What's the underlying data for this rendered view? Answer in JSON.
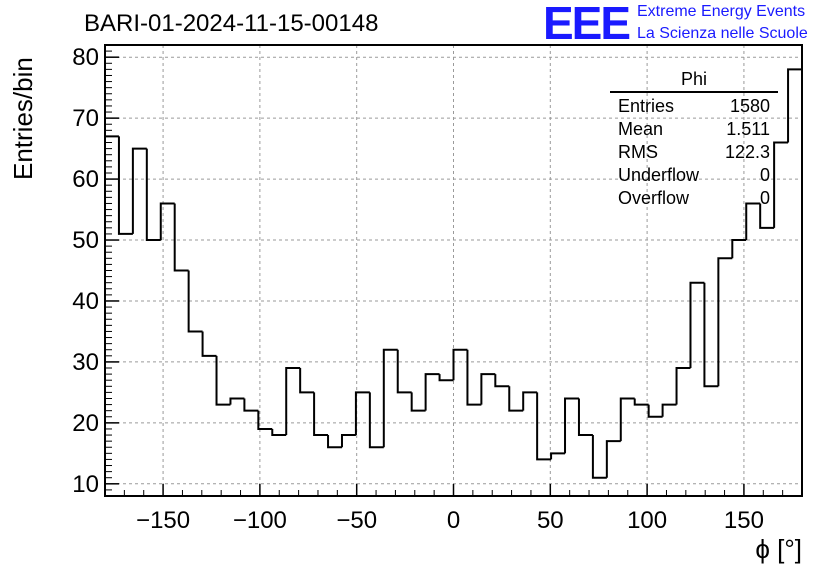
{
  "title": "BARI-01-2024-11-15-00148",
  "logo": {
    "mark": "EEE",
    "line1": "Extreme Energy Events",
    "line2": "La Scienza nelle Scuole",
    "color": "#1a1aff"
  },
  "stats": {
    "name": "Phi",
    "rows": [
      {
        "label": "Entries",
        "value": "1580"
      },
      {
        "label": "Mean",
        "value": "1.511"
      },
      {
        "label": "RMS",
        "value": "122.3"
      },
      {
        "label": "Underflow",
        "value": "0"
      },
      {
        "label": "Overflow",
        "value": "0"
      }
    ]
  },
  "chart_data": {
    "type": "bar",
    "style": "step-histogram",
    "title": "BARI-01-2024-11-15-00148",
    "xlabel": "ϕ [°]",
    "ylabel": "Entries/bin",
    "xlim": [
      -180,
      180
    ],
    "ylim": [
      8,
      82
    ],
    "bin_width": 7.2,
    "bin_edges_start": -180,
    "x_ticks": [
      -150,
      -100,
      -50,
      0,
      50,
      100,
      150
    ],
    "x_tick_labels": [
      "−150",
      "−100",
      "−50",
      "0",
      "50",
      "100",
      "150"
    ],
    "y_ticks": [
      10,
      20,
      30,
      40,
      50,
      60,
      70,
      80
    ],
    "y_tick_labels": [
      "10",
      "20",
      "30",
      "40",
      "50",
      "60",
      "70",
      "80"
    ],
    "grid": true,
    "values": [
      67,
      51,
      65,
      50,
      56,
      45,
      35,
      31,
      23,
      24,
      22,
      19,
      18,
      29,
      25,
      18,
      16,
      18,
      25,
      16,
      32,
      25,
      22,
      28,
      27,
      32,
      23,
      28,
      26,
      22,
      25,
      14,
      15,
      24,
      18,
      11,
      17,
      24,
      23,
      21,
      23,
      29,
      43,
      26,
      47,
      50,
      56,
      52,
      66,
      78
    ]
  }
}
